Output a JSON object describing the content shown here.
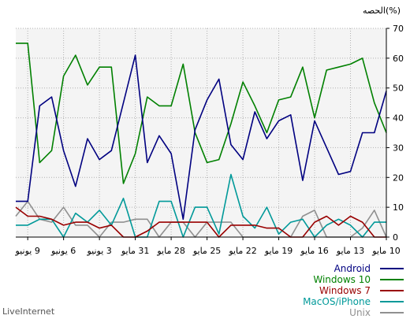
{
  "chart_data": {
    "type": "line",
    "unit_label": "(%)الحصه",
    "footer": "LiveInternet",
    "ylim": [
      0,
      70
    ],
    "yticks": [
      0,
      10,
      20,
      30,
      40,
      50,
      60,
      70
    ],
    "x_tick_labels": [
      {
        "index": 0,
        "label": "10 مايو"
      },
      {
        "index": 3,
        "label": "13 مايو"
      },
      {
        "index": 6,
        "label": "16 مايو"
      },
      {
        "index": 9,
        "label": "19 مايو"
      },
      {
        "index": 12,
        "label": "22 مايو"
      },
      {
        "index": 15,
        "label": "25 مايو"
      },
      {
        "index": 18,
        "label": "28 مايو"
      },
      {
        "index": 21,
        "label": "31 مايو"
      },
      {
        "index": 24,
        "label": "3 يونيو"
      },
      {
        "index": 27,
        "label": "6 يونيو"
      },
      {
        "index": 30,
        "label": "9 يونيو"
      }
    ],
    "x_direction": "right-to-left",
    "n_points": 32,
    "grid": true,
    "legend_position": "bottom-right",
    "series": [
      {
        "name": "Android",
        "color": "#000080",
        "values": [
          49,
          35,
          35,
          22,
          21,
          30,
          39,
          19,
          41,
          39,
          33,
          42,
          26,
          31,
          53,
          46,
          36,
          6,
          28,
          34,
          25,
          61,
          45,
          29,
          26,
          33,
          17,
          29,
          47,
          44,
          12,
          12
        ]
      },
      {
        "name": "Windows 10",
        "color": "#008000",
        "values": [
          35,
          45,
          60,
          58,
          57,
          56,
          40,
          57,
          47,
          46,
          35,
          44,
          52,
          38,
          26,
          25,
          35,
          58,
          44,
          44,
          47,
          28,
          18,
          57,
          57,
          51,
          61,
          54,
          29,
          25,
          65,
          65
        ]
      },
      {
        "name": "Windows 7",
        "color": "#990000",
        "values": [
          0,
          0,
          5,
          7,
          4,
          7,
          5,
          0,
          0,
          3,
          3,
          4,
          4,
          4,
          0,
          5,
          5,
          5,
          5,
          5,
          2,
          0,
          0,
          4,
          3,
          5,
          5,
          4,
          6,
          7,
          7,
          10
        ]
      },
      {
        "name": "MacOS/iPhone",
        "color": "#009999",
        "values": [
          5,
          5,
          0,
          4,
          6,
          4,
          0,
          6,
          5,
          1,
          10,
          3,
          7,
          21,
          1,
          10,
          10,
          0,
          12,
          12,
          0,
          0,
          13,
          4,
          9,
          5,
          8,
          0,
          6,
          6,
          4,
          4
        ]
      },
      {
        "name": "Unix",
        "color": "#909090",
        "values": [
          0,
          9,
          3,
          0,
          0,
          0,
          9,
          7,
          0,
          0,
          0,
          0,
          0,
          5,
          5,
          5,
          0,
          5,
          5,
          0,
          6,
          6,
          5,
          5,
          0,
          4,
          4,
          10,
          5,
          6,
          12,
          7
        ]
      }
    ]
  }
}
